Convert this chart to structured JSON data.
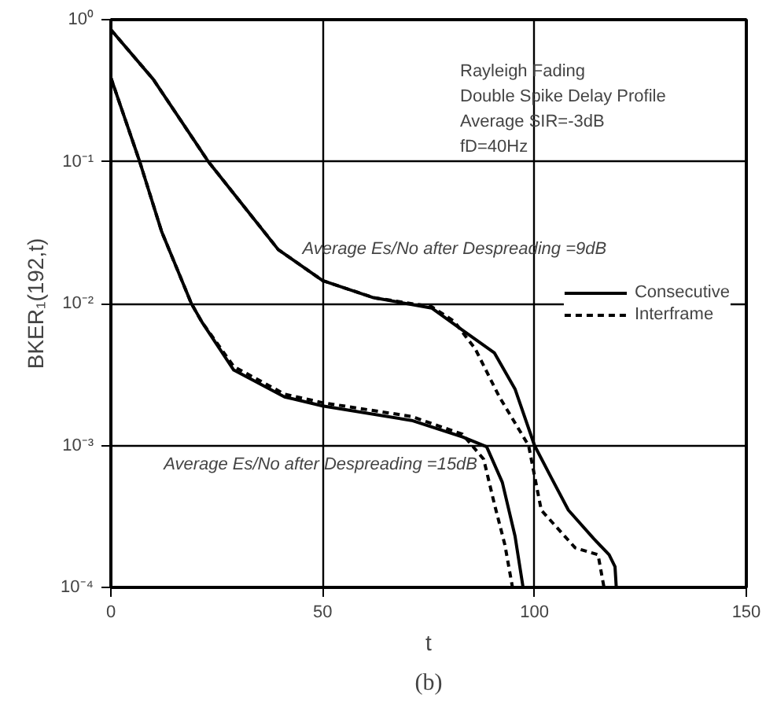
{
  "chart_data": {
    "type": "line",
    "title": "(b)",
    "xlabel": "t",
    "ylabel": "BKER₁(192,t)",
    "log": "y",
    "xlim": [
      0,
      150
    ],
    "ylim": [
      0.0001,
      1
    ],
    "xticks": [
      0,
      50,
      100,
      150
    ],
    "yticks": [
      {
        "value": 0.0001,
        "label": "10⁻⁴"
      },
      {
        "value": 0.001,
        "label": "10⁻³"
      },
      {
        "value": 0.01,
        "label": "10⁻²"
      },
      {
        "value": 0.1,
        "label": "10⁻¹"
      },
      {
        "value": 1,
        "label": "10⁰"
      }
    ],
    "grid": true,
    "legend": "right",
    "marker": "none",
    "annotations": [
      "Rayleigh Fading",
      "Double Spike Delay Profile",
      "Average SIR=-3dB",
      "fD=40Hz",
      {
        "text": "Average Es/No after Despreading =9dB",
        "x": 40,
        "y": 0.024
      },
      {
        "text": "Average Es/No after Despreading =15dB",
        "x": 88,
        "y": 0.001
      }
    ],
    "series": [
      {
        "name": "Consecutive",
        "color": "#000000",
        "line_style": "solid",
        "x": [
          0,
          10,
          23,
          39.5,
          50,
          62,
          75.7,
          83,
          90.5,
          95.4,
          100,
          104,
          108,
          114,
          117.6,
          119,
          119.3
        ],
        "values": [
          0.85,
          0.38,
          0.1,
          0.024,
          0.0145,
          0.011,
          0.0093,
          0.0065,
          0.0045,
          0.0025,
          0.001,
          0.00059,
          0.00035,
          0.00022,
          0.00017,
          0.00014,
          0.0001
        ]
      },
      {
        "name": "Interframe",
        "color": "#000000",
        "line_style": "dashed",
        "x": [
          0,
          10,
          23,
          39.5,
          50,
          62,
          75.7,
          81,
          86,
          91.7,
          98.6,
          101.6,
          109.6,
          115,
          116.4
        ],
        "values": [
          0.85,
          0.38,
          0.1,
          0.024,
          0.0145,
          0.011,
          0.0095,
          0.0075,
          0.0048,
          0.0022,
          0.001,
          0.00035,
          0.00019,
          0.00017,
          0.0001
        ]
      },
      {
        "color": "#000000",
        "line_style": "solid",
        "x": [
          0,
          6.8,
          12,
          19,
          21.5,
          29,
          41,
          50,
          71,
          83,
          88.7,
          92.4,
          95.4,
          97.3
        ],
        "values": [
          0.39,
          0.1,
          0.032,
          0.01,
          0.0074,
          0.0034,
          0.0022,
          0.0019,
          0.0015,
          0.00115,
          0.00098,
          0.00055,
          0.00023,
          0.0001
        ]
      },
      {
        "color": "#000000",
        "line_style": "dashed",
        "x": [
          0,
          6.8,
          12,
          19,
          21.5,
          29,
          41,
          50,
          71,
          83,
          88,
          90.5,
          93,
          94.8
        ],
        "values": [
          0.39,
          0.1,
          0.032,
          0.01,
          0.0074,
          0.0036,
          0.0023,
          0.002,
          0.0016,
          0.0012,
          0.0008,
          0.00039,
          0.0002,
          0.0001
        ]
      }
    ]
  }
}
